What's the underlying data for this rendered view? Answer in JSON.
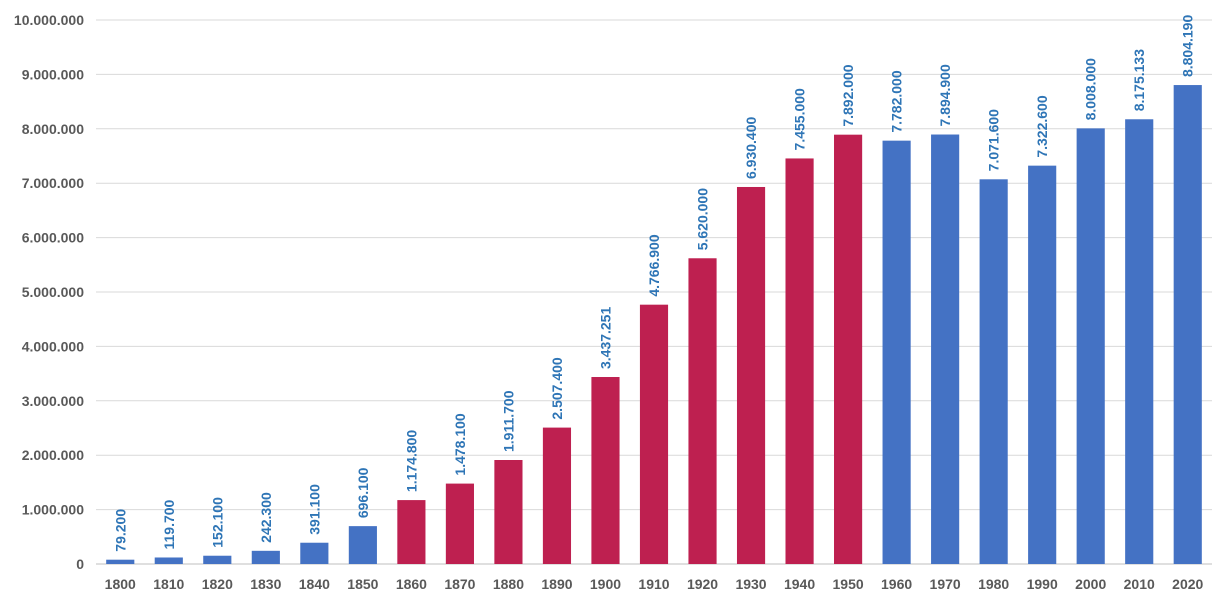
{
  "chart_data": {
    "type": "bar",
    "title": "",
    "xlabel": "",
    "ylabel": "",
    "ylim": [
      0,
      10000000
    ],
    "yticks": [
      0,
      1000000,
      2000000,
      3000000,
      4000000,
      5000000,
      6000000,
      7000000,
      8000000,
      9000000,
      10000000
    ],
    "ytick_labels": [
      "0",
      "1.000.000",
      "2.000.000",
      "3.000.000",
      "4.000.000",
      "5.000.000",
      "6.000.000",
      "7.000.000",
      "8.000.000",
      "9.000.000",
      "10.000.000"
    ],
    "grid": true,
    "categories": [
      "1800",
      "1810",
      "1820",
      "1830",
      "1840",
      "1850",
      "1860",
      "1870",
      "1880",
      "1890",
      "1900",
      "1910",
      "1920",
      "1930",
      "1940",
      "1950",
      "1960",
      "1970",
      "1980",
      "1990",
      "2000",
      "2010",
      "2020"
    ],
    "values": [
      79200,
      119700,
      152100,
      242300,
      391100,
      696100,
      1174800,
      1478100,
      1911700,
      2507400,
      3437251,
      4766900,
      5620000,
      6930400,
      7455000,
      7892000,
      7782000,
      7894900,
      7071600,
      7322600,
      8008000,
      8175133,
      8804190
    ],
    "data_labels": [
      "79.200",
      "119.700",
      "152.100",
      "242.300",
      "391.100",
      "696.100",
      "1.174.800",
      "1.478.100",
      "1.911.700",
      "2.507.400",
      "3.437.251",
      "4.766.900",
      "5.620.000",
      "6.930.400",
      "7.455.000",
      "7.892.000",
      "7.782.000",
      "7.894.900",
      "7.071.600",
      "7.322.600",
      "8.008.000",
      "8.175.133",
      "8.804.190"
    ],
    "highlight": [
      "1860",
      "1870",
      "1880",
      "1890",
      "1900",
      "1910",
      "1920",
      "1930",
      "1940",
      "1950"
    ],
    "colors": {
      "default": "#4472C4",
      "highlight": "#BE2050",
      "label": "#2E75B6",
      "tick": "#595959",
      "grid": "#d9d9d9"
    }
  }
}
